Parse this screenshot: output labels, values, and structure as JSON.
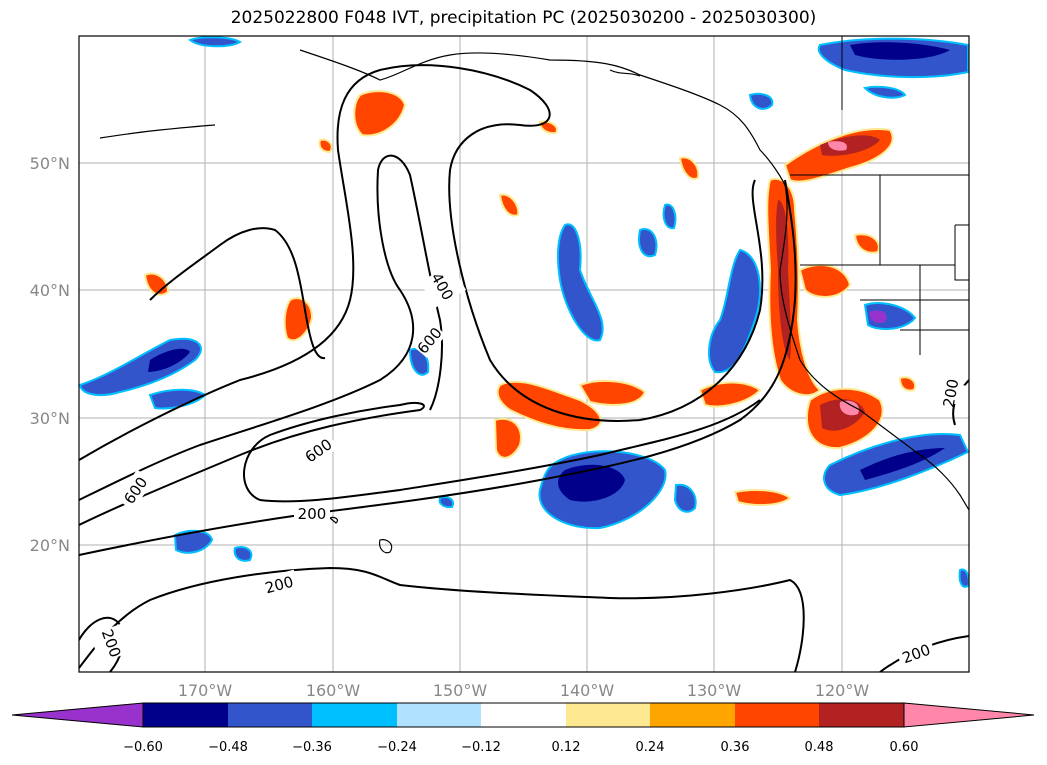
{
  "title": "2025022800 F048 IVT, precipitation PC (2025030200 - 2025030300)",
  "lat_labels": [
    "50°N",
    "40°N",
    "30°N",
    "20°N"
  ],
  "lon_labels": [
    "170°W",
    "160°W",
    "150°W",
    "140°W",
    "130°W",
    "120°W"
  ],
  "contour_labels": [
    "400",
    "600",
    "600",
    "600",
    "200",
    "200",
    "200",
    "200",
    "200"
  ],
  "colorbar": {
    "ticks": [
      "−0.60",
      "−0.48",
      "−0.36",
      "−0.24",
      "−0.12",
      "0.12",
      "0.24",
      "0.36",
      "0.48",
      "0.60"
    ],
    "colors": [
      "#9932cc",
      "#00008b",
      "#3355cc",
      "#00bfff",
      "#b0e2ff",
      "#ffffff",
      "#ffe990",
      "#ffa500",
      "#ff4500",
      "#b22222",
      "#ff88aa",
      "#ff88aa"
    ]
  },
  "map_extent": {
    "lon_range": [
      "180°W",
      "110°W"
    ],
    "lat_range": [
      "10°N",
      "60°N"
    ]
  }
}
